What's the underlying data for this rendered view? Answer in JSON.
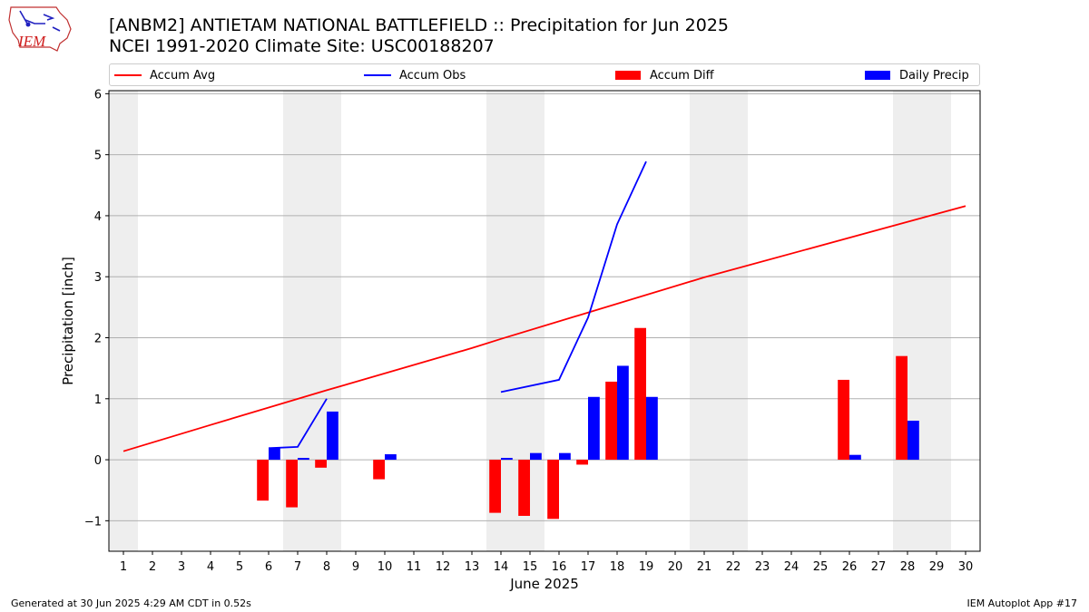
{
  "header": {
    "title": "[ANBM2] ANTIETAM NATIONAL BATTLEFIELD :: Precipitation for Jun 2025",
    "subtitle": "NCEI 1991-2020 Climate Site: USC00188207",
    "logo_text": "IEM"
  },
  "footer": {
    "generated": "Generated at 30 Jun 2025 4:29 AM CDT in 0.52s",
    "app": "IEM Autoplot App #17"
  },
  "legend": [
    {
      "label": "Accum Avg",
      "kind": "line",
      "color": "#ff0000"
    },
    {
      "label": "Accum Obs",
      "kind": "line",
      "color": "#0000ff"
    },
    {
      "label": "Accum Diff",
      "kind": "patch",
      "color": "#ff0000"
    },
    {
      "label": "Daily Precip",
      "kind": "patch",
      "color": "#0000ff"
    }
  ],
  "chart_data": {
    "type": "bar",
    "xlabel": "June 2025",
    "ylabel": "Precipitation [inch]",
    "xlim": [
      0.5,
      30.5
    ],
    "ylim": [
      -1.5,
      6.05
    ],
    "yticks": [
      -1,
      0,
      1,
      2,
      3,
      4,
      5,
      6
    ],
    "ytick_labels": [
      "−1",
      "0",
      "1",
      "2",
      "3",
      "4",
      "5",
      "6"
    ],
    "xticks": [
      1,
      2,
      3,
      4,
      5,
      6,
      7,
      8,
      9,
      10,
      11,
      12,
      13,
      14,
      15,
      16,
      17,
      18,
      19,
      20,
      21,
      22,
      23,
      24,
      25,
      26,
      27,
      28,
      29,
      30
    ],
    "grid": "horizontal",
    "weekend_shading": [
      [
        0.5,
        1.5
      ],
      [
        6.5,
        8.5
      ],
      [
        13.5,
        15.5
      ],
      [
        20.5,
        22.5
      ],
      [
        27.5,
        29.5
      ]
    ],
    "colors": {
      "avg": "#ff0000",
      "obs": "#0000ff",
      "diff": "#ff0000",
      "daily": "#0000ff",
      "weekend": "#eeeeee"
    },
    "accum_avg": {
      "name": "Accum Avg",
      "x": [
        1,
        4,
        8,
        13,
        14,
        21,
        30
      ],
      "y": [
        0.14,
        0.57,
        1.14,
        1.83,
        1.98,
        2.99,
        4.16
      ]
    },
    "accum_obs": {
      "name": "Accum Obs",
      "segments": [
        {
          "x": [
            6,
            7,
            8
          ],
          "y": [
            0.19,
            0.21,
            1.0
          ]
        },
        {
          "x": [
            14,
            16,
            17,
            18,
            19
          ],
          "y": [
            1.11,
            1.31,
            2.33,
            3.86,
            4.89
          ]
        }
      ]
    },
    "accum_diff": {
      "name": "Accum Diff",
      "x": [
        6,
        7,
        8,
        10,
        14,
        15,
        16,
        17,
        18,
        19,
        26,
        28
      ],
      "values": [
        -0.67,
        -0.78,
        -0.13,
        -0.32,
        -0.87,
        -0.92,
        -0.97,
        -0.08,
        1.28,
        2.16,
        1.31,
        1.7
      ]
    },
    "daily_precip": {
      "name": "Daily Precip",
      "x": [
        6,
        7,
        8,
        10,
        14,
        15,
        16,
        17,
        18,
        19,
        26,
        28
      ],
      "values": [
        0.19,
        0.03,
        0.79,
        0.09,
        0.03,
        0.11,
        0.11,
        1.03,
        1.54,
        1.03,
        0.08,
        0.64
      ]
    }
  }
}
